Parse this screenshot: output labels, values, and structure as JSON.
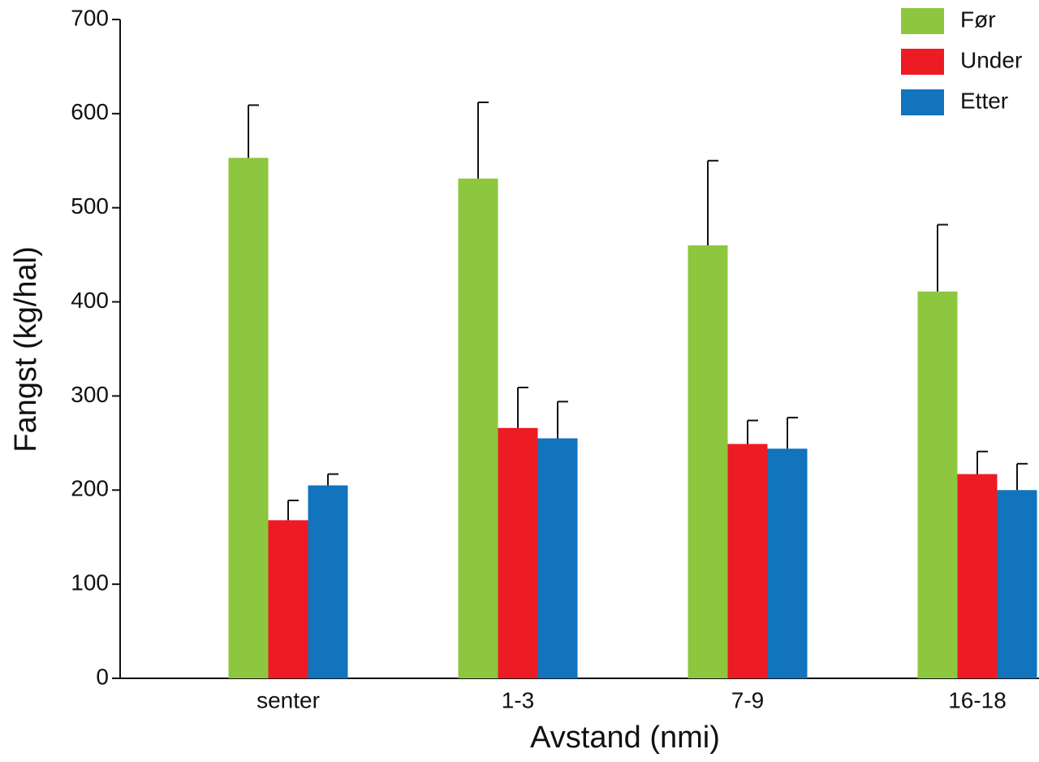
{
  "chart_data": {
    "type": "bar",
    "x_label": "Avstand (nmi)",
    "y_label": "Fangst (kg/hal)",
    "categories": [
      "senter",
      "1-3",
      "7-9",
      "16-18"
    ],
    "series": [
      {
        "name": "Før",
        "color": "#8dc63f",
        "values": [
          553,
          531,
          460,
          411
        ],
        "errors": [
          56,
          81,
          90,
          71
        ]
      },
      {
        "name": "Under",
        "color": "#ed1c24",
        "values": [
          168,
          266,
          249,
          217
        ],
        "errors": [
          21,
          43,
          25,
          24
        ]
      },
      {
        "name": "Etter",
        "color": "#1174bd",
        "values": [
          205,
          255,
          244,
          200
        ],
        "errors": [
          12,
          39,
          33,
          28
        ]
      }
    ],
    "ylim": [
      0,
      700
    ],
    "yticks": [
      0,
      100,
      200,
      300,
      400,
      500,
      600,
      700
    ],
    "legend": "upper right"
  }
}
